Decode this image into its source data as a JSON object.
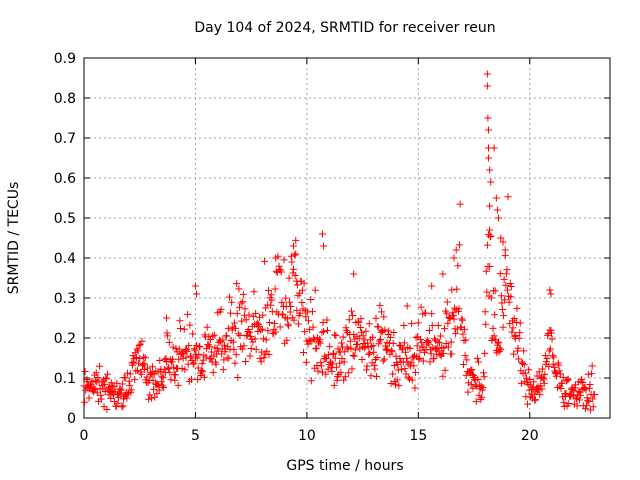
{
  "chart_data": {
    "type": "scatter",
    "title": "Day 104 of 2024, SRMTID for receiver reun",
    "xlabel": "GPS time / hours",
    "ylabel": "SRMTID / TECUs",
    "xlim": [
      0,
      23.6
    ],
    "ylim": [
      0,
      0.9
    ],
    "grid": true,
    "marker": "+",
    "color": "#ff0000",
    "x_ticks": [
      0,
      5,
      10,
      15,
      20
    ],
    "x_tick_labels": [
      "0",
      "5",
      "10",
      "15",
      "20"
    ],
    "y_ticks": [
      0,
      0.1,
      0.2,
      0.3,
      0.4,
      0.5,
      0.6,
      0.7,
      0.8,
      0.9
    ],
    "y_tick_labels": [
      "0",
      "0.1",
      "0.2",
      "0.3",
      "0.4",
      "0.5",
      "0.6",
      "0.7",
      "0.8",
      "0.9"
    ],
    "sample_interval_hours": 0.025,
    "trend": [
      [
        0.0,
        0.07
      ],
      [
        0.5,
        0.07
      ],
      [
        1.0,
        0.065
      ],
      [
        1.5,
        0.05
      ],
      [
        2.0,
        0.08
      ],
      [
        2.3,
        0.14
      ],
      [
        2.6,
        0.17
      ],
      [
        2.8,
        0.1
      ],
      [
        3.2,
        0.09
      ],
      [
        3.6,
        0.12
      ],
      [
        4.0,
        0.15
      ],
      [
        4.5,
        0.14
      ],
      [
        5.0,
        0.13
      ],
      [
        5.5,
        0.16
      ],
      [
        6.0,
        0.19
      ],
      [
        6.5,
        0.2
      ],
      [
        7.0,
        0.22
      ],
      [
        7.5,
        0.2
      ],
      [
        8.0,
        0.2
      ],
      [
        8.5,
        0.26
      ],
      [
        8.8,
        0.3
      ],
      [
        9.0,
        0.28
      ],
      [
        9.5,
        0.32
      ],
      [
        9.8,
        0.3
      ],
      [
        10.0,
        0.22
      ],
      [
        10.5,
        0.18
      ],
      [
        11.0,
        0.17
      ],
      [
        11.5,
        0.13
      ],
      [
        12.0,
        0.22
      ],
      [
        12.5,
        0.18
      ],
      [
        13.0,
        0.17
      ],
      [
        13.5,
        0.2
      ],
      [
        14.0,
        0.14
      ],
      [
        14.5,
        0.15
      ],
      [
        15.0,
        0.18
      ],
      [
        15.5,
        0.2
      ],
      [
        16.0,
        0.17
      ],
      [
        16.5,
        0.22
      ],
      [
        16.8,
        0.3
      ],
      [
        17.2,
        0.12
      ],
      [
        17.6,
        0.1
      ],
      [
        17.9,
        0.07
      ],
      [
        18.1,
        0.45
      ],
      [
        18.3,
        0.28
      ],
      [
        18.5,
        0.15
      ],
      [
        18.8,
        0.3
      ],
      [
        19.0,
        0.38
      ],
      [
        19.3,
        0.2
      ],
      [
        19.6,
        0.15
      ],
      [
        19.8,
        0.08
      ],
      [
        20.2,
        0.07
      ],
      [
        20.6,
        0.1
      ],
      [
        20.9,
        0.18
      ],
      [
        21.2,
        0.1
      ],
      [
        21.6,
        0.07
      ],
      [
        22.0,
        0.06
      ],
      [
        22.5,
        0.06
      ],
      [
        22.9,
        0.07
      ]
    ],
    "peaks": [
      [
        18.1,
        0.86
      ],
      [
        18.1,
        0.83
      ],
      [
        18.12,
        0.75
      ],
      [
        18.15,
        0.72
      ],
      [
        18.15,
        0.675
      ],
      [
        18.15,
        0.65
      ],
      [
        18.2,
        0.62
      ],
      [
        18.25,
        0.59
      ],
      [
        18.4,
        0.675
      ],
      [
        18.5,
        0.55
      ],
      [
        18.55,
        0.52
      ],
      [
        18.6,
        0.5
      ],
      [
        18.2,
        0.53
      ],
      [
        18.2,
        0.47
      ],
      [
        18.7,
        0.45
      ],
      [
        18.8,
        0.44
      ],
      [
        18.9,
        0.42
      ],
      [
        9.4,
        0.43
      ],
      [
        9.5,
        0.41
      ],
      [
        10.7,
        0.46
      ],
      [
        10.75,
        0.43
      ],
      [
        8.6,
        0.4
      ],
      [
        16.7,
        0.42
      ],
      [
        16.6,
        0.4
      ],
      [
        16.1,
        0.36
      ],
      [
        12.1,
        0.36
      ],
      [
        5.0,
        0.33
      ],
      [
        5.05,
        0.31
      ],
      [
        3.7,
        0.25
      ],
      [
        20.9,
        0.32
      ],
      [
        20.95,
        0.31
      ],
      [
        14.5,
        0.28
      ],
      [
        15.6,
        0.33
      ],
      [
        16.5,
        0.32
      ]
    ]
  }
}
